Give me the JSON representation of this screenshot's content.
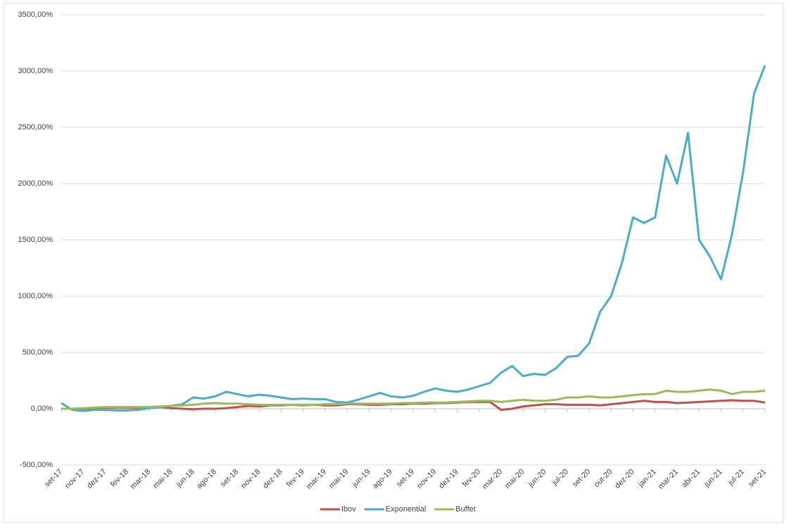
{
  "chart_data": {
    "type": "line",
    "categories": [
      "set-17",
      null,
      "nov-17",
      null,
      "dez-17",
      null,
      "fev-18",
      null,
      "mar-18",
      null,
      "mai-18",
      null,
      "jun-18",
      null,
      "ago-18",
      null,
      "set-18",
      null,
      "nov-18",
      null,
      "dez-18",
      null,
      "fev-19",
      null,
      "mar-19",
      null,
      "mai-19",
      null,
      "jun-19",
      null,
      "ago-19",
      null,
      "set-19",
      null,
      "nov-19",
      null,
      "dez-19",
      null,
      "fev-20",
      null,
      "mar-20",
      null,
      "mai-20",
      null,
      "jun-20",
      null,
      "jul-20",
      null,
      "set-20",
      null,
      "out-20",
      null,
      "dez-20",
      null,
      "jan-21",
      null,
      "mar-21",
      null,
      "abr-21",
      null,
      "jun-21",
      null,
      "jul-21",
      null,
      "set-21"
    ],
    "series": [
      {
        "name": "Ibov",
        "color": "#c0504d",
        "values": [
          0,
          0,
          0,
          5,
          10,
          10,
          10,
          10,
          15,
          15,
          5,
          0,
          -5,
          0,
          0,
          5,
          15,
          25,
          20,
          30,
          30,
          35,
          30,
          35,
          30,
          30,
          40,
          40,
          35,
          35,
          40,
          40,
          45,
          45,
          50,
          50,
          55,
          60,
          60,
          60,
          -10,
          0,
          20,
          30,
          40,
          40,
          35,
          35,
          35,
          30,
          40,
          50,
          60,
          70,
          60,
          60,
          50,
          55,
          60,
          65,
          70,
          75,
          70,
          70,
          55
        ]
      },
      {
        "name": "Exponential",
        "color": "#4bacc6",
        "values": [
          50,
          -10,
          -20,
          -10,
          -10,
          -15,
          -15,
          -10,
          5,
          15,
          25,
          40,
          100,
          90,
          110,
          150,
          130,
          110,
          125,
          115,
          100,
          85,
          90,
          85,
          85,
          60,
          55,
          80,
          110,
          140,
          110,
          100,
          115,
          150,
          180,
          160,
          150,
          170,
          200,
          230,
          320,
          380,
          290,
          310,
          300,
          360,
          460,
          470,
          580,
          860,
          1000,
          1300,
          1700,
          1650,
          1700,
          2250,
          2000,
          2450,
          1500,
          1350,
          1150,
          1550,
          2100,
          2800,
          3050
        ]
      },
      {
        "name": "Buffet",
        "color": "#9bbb59",
        "values": [
          0,
          0,
          5,
          10,
          15,
          15,
          15,
          15,
          15,
          20,
          25,
          30,
          35,
          45,
          50,
          45,
          45,
          40,
          35,
          35,
          35,
          35,
          35,
          35,
          40,
          40,
          45,
          45,
          45,
          45,
          45,
          50,
          50,
          55,
          55,
          55,
          60,
          65,
          70,
          70,
          60,
          70,
          80,
          70,
          70,
          80,
          100,
          100,
          110,
          100,
          100,
          110,
          120,
          130,
          130,
          160,
          150,
          150,
          160,
          170,
          160,
          130,
          150,
          150,
          160
        ]
      }
    ],
    "ylim": [
      -500,
      3500
    ],
    "yticks": [
      {
        "value": -500,
        "label": "-500,00%"
      },
      {
        "value": 0,
        "label": "0,00%"
      },
      {
        "value": 500,
        "label": "500,00%"
      },
      {
        "value": 1000,
        "label": "1000,00%"
      },
      {
        "value": 1500,
        "label": "1500,00%"
      },
      {
        "value": 2000,
        "label": "2000,00%"
      },
      {
        "value": 2500,
        "label": "2500,00%"
      },
      {
        "value": 3000,
        "label": "3000,00%"
      },
      {
        "value": 3500,
        "label": "3500,00%"
      }
    ],
    "grid": true,
    "legend": "bottom"
  }
}
